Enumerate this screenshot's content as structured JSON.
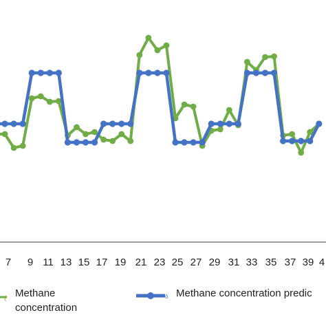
{
  "chart_data": {
    "type": "line",
    "title": "",
    "xlabel": "",
    "ylabel": "",
    "x_ticks": [
      "7",
      "9",
      "11",
      "13",
      "15",
      "17",
      "19",
      "21",
      "23",
      "25",
      "27",
      "29",
      "31",
      "33",
      "35",
      "37",
      "39",
      "4"
    ],
    "x": [
      5,
      6,
      7,
      8,
      9,
      10,
      11,
      12,
      13,
      14,
      15,
      16,
      17,
      18,
      19,
      20,
      21,
      22,
      23,
      24,
      25,
      26,
      27,
      28,
      29,
      30,
      31,
      32,
      33,
      34,
      35,
      36,
      37,
      38,
      39,
      40,
      41
    ],
    "series": [
      {
        "name": "Methane concentration",
        "color": "#70ad47",
        "values": [
          195,
          195,
          215,
          212,
          143,
          140,
          148,
          147,
          197,
          185,
          195,
          192,
          203,
          205,
          195,
          205,
          80,
          55,
          73,
          66,
          172,
          152,
          155,
          212,
          190,
          188,
          160,
          182,
          90,
          102,
          83,
          82,
          197,
          195,
          222,
          192,
          180
        ]
      },
      {
        "name": "Methane concentration predic",
        "color": "#4472c4",
        "values": [
          180,
          180,
          180,
          180,
          106,
          106,
          106,
          106,
          207,
          207,
          207,
          207,
          180,
          180,
          180,
          180,
          106,
          106,
          106,
          106,
          207,
          207,
          207,
          207,
          180,
          180,
          180,
          180,
          106,
          106,
          106,
          106,
          205,
          205,
          205,
          205,
          180
        ]
      }
    ],
    "y_inverted_pixel_like": false,
    "grid": false,
    "legend_position": "bottom"
  },
  "legend": {
    "items": [
      {
        "label_line1": "Methane",
        "label_line2": "concentration",
        "color": "#70ad47"
      },
      {
        "label_line1": "Methane concentration predic",
        "label_line2": "",
        "color": "#4472c4"
      }
    ]
  }
}
